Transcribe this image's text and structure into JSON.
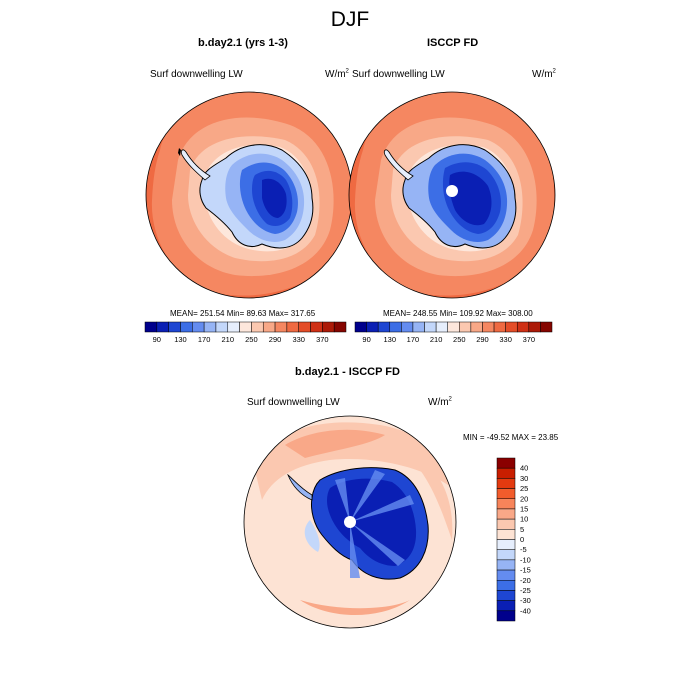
{
  "title": "DJF",
  "panels": [
    {
      "title": "b.day2.1 (yrs 1-3)",
      "left_label": "Surf downwelling LW",
      "units": "W/m",
      "units_exp": "2",
      "stats": "MEAN= 251.54  Min=  89.63  Max= 317.65"
    },
    {
      "title": "ISCCP FD",
      "left_label": "Surf downwelling LW",
      "units": "W/m",
      "units_exp": "2",
      "stats": "MEAN= 248.55  Min= 109.92  Max= 308.00"
    }
  ],
  "diff_panel": {
    "title": "b.day2.1 - ISCCP FD",
    "left_label": "Surf downwelling LW",
    "units": "W/m",
    "units_exp": "2",
    "stats": "MIN = -49.52 MAX =  23.85"
  },
  "colorbar_top": {
    "labels": [
      "90",
      "130",
      "170",
      "210",
      "250",
      "290",
      "330",
      "370"
    ],
    "colors": [
      "#00008c",
      "#0a1fb4",
      "#1e46d2",
      "#3c6ee6",
      "#648cf0",
      "#96b4f5",
      "#c3d7fa",
      "#e6eefc",
      "#fde7dc",
      "#fbc8b0",
      "#f8a887",
      "#f58761",
      "#ef6a42",
      "#e44d28",
      "#cf3015",
      "#ac1a08",
      "#850500"
    ]
  },
  "colorbar_diff": {
    "labels": [
      "40",
      "30",
      "25",
      "20",
      "15",
      "10",
      "5",
      "0",
      "-5",
      "-10",
      "-15",
      "-20",
      "-25",
      "-30",
      "-40"
    ],
    "colors": [
      "#8a0000",
      "#c81e00",
      "#e33a10",
      "#f25c2c",
      "#f7845a",
      "#f9a888",
      "#fbc8b0",
      "#fde3d4",
      "#e6eefc",
      "#c3d7fa",
      "#96b4f5",
      "#648cf0",
      "#3c6ee6",
      "#1e46d2",
      "#0a1fb4",
      "#00008c"
    ]
  }
}
